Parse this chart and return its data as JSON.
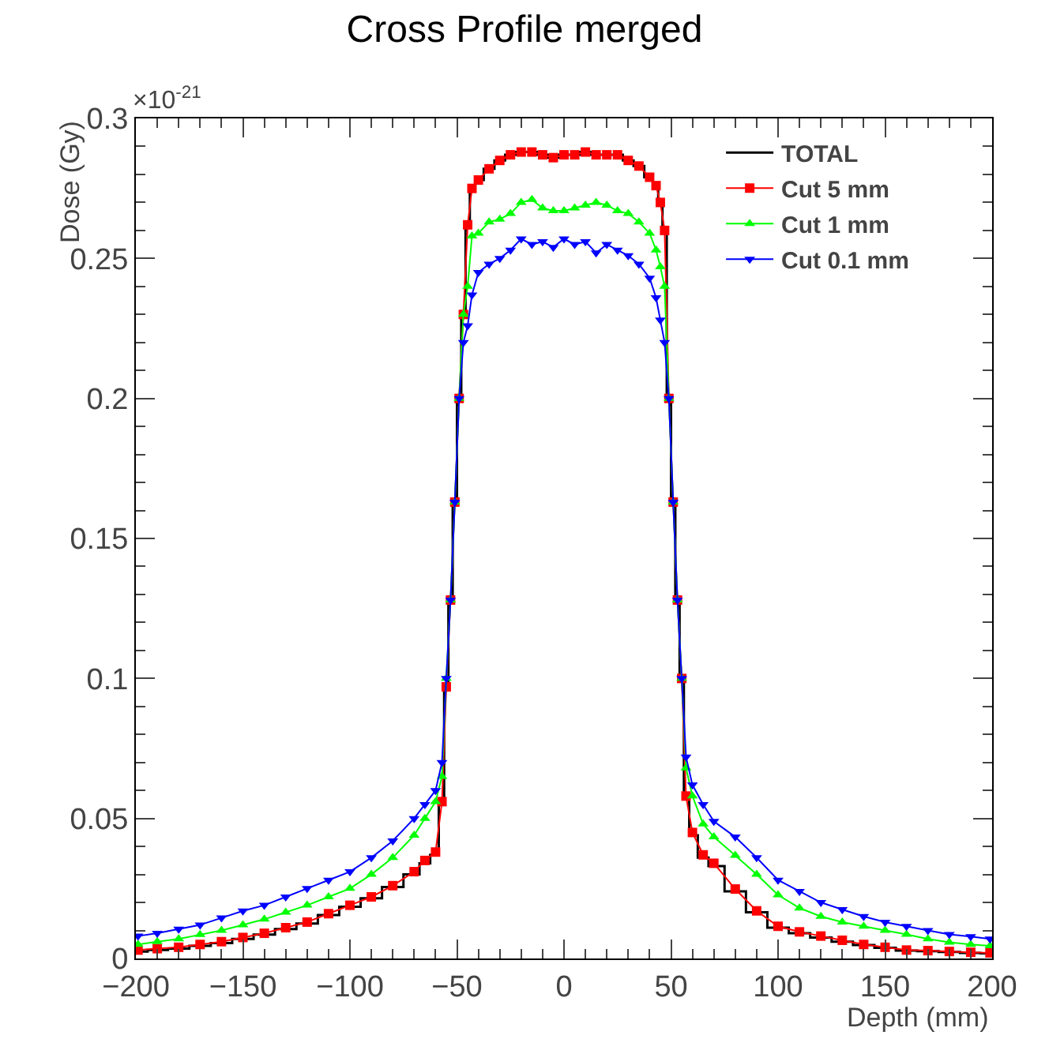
{
  "chart_data": {
    "type": "line",
    "title": "Cross Profile merged",
    "xlabel": "Depth (mm)",
    "ylabel": "Dose (Gy)",
    "annotations": [
      "×10$^{-21}$"
    ],
    "x": [
      -199,
      -190,
      -180,
      -170,
      -160,
      -150,
      -140,
      -130,
      -120,
      -110,
      -100,
      -90,
      -80,
      -70,
      -65,
      -60,
      -57,
      -55,
      -53,
      -51,
      -49,
      -47,
      -45,
      -43,
      -40,
      -35,
      -30,
      -25,
      -20,
      -15,
      -10,
      -5,
      0,
      5,
      10,
      15,
      20,
      25,
      30,
      35,
      40,
      43,
      45,
      47,
      49,
      51,
      53,
      55,
      57,
      60,
      65,
      70,
      80,
      90,
      100,
      110,
      120,
      130,
      140,
      150,
      160,
      170,
      180,
      190,
      199
    ],
    "series": [
      {
        "name": "TOTAL",
        "type": "step",
        "color": "#000000",
        "marker": "none",
        "values": [
          0.0025,
          0.003,
          0.0035,
          0.0045,
          0.0055,
          0.007,
          0.0085,
          0.0105,
          0.0125,
          0.0155,
          0.0185,
          0.0215,
          0.0255,
          0.03,
          0.034,
          0.037,
          0.056,
          0.097,
          0.128,
          0.163,
          0.2,
          0.23,
          0.262,
          0.275,
          0.278,
          0.282,
          0.285,
          0.287,
          0.288,
          0.288,
          0.287,
          0.286,
          0.287,
          0.287,
          0.288,
          0.287,
          0.287,
          0.287,
          0.285,
          0.283,
          0.279,
          0.276,
          0.27,
          0.26,
          0.2,
          0.163,
          0.128,
          0.1,
          0.058,
          0.044,
          0.036,
          0.033,
          0.024,
          0.0165,
          0.011,
          0.009,
          0.0075,
          0.006,
          0.0048,
          0.0038,
          0.0028,
          0.0026,
          0.0023,
          0.002,
          0.0018
        ]
      },
      {
        "name": "Cut 5 mm",
        "color": "#ff0000",
        "marker": "square",
        "values": [
          0.003,
          0.0035,
          0.004,
          0.005,
          0.006,
          0.0075,
          0.009,
          0.011,
          0.013,
          0.016,
          0.019,
          0.022,
          0.026,
          0.031,
          0.035,
          0.038,
          0.056,
          0.097,
          0.128,
          0.163,
          0.2,
          0.23,
          0.262,
          0.275,
          0.278,
          0.282,
          0.285,
          0.287,
          0.288,
          0.288,
          0.287,
          0.286,
          0.287,
          0.287,
          0.288,
          0.287,
          0.287,
          0.287,
          0.285,
          0.283,
          0.279,
          0.276,
          0.27,
          0.26,
          0.2,
          0.163,
          0.128,
          0.1,
          0.058,
          0.045,
          0.037,
          0.034,
          0.0248,
          0.017,
          0.0115,
          0.0095,
          0.008,
          0.0065,
          0.005,
          0.004,
          0.003,
          0.0028,
          0.0025,
          0.0022,
          0.002
        ]
      },
      {
        "name": "Cut 1 mm",
        "color": "#00ff00",
        "marker": "triangle",
        "values": [
          0.005,
          0.006,
          0.007,
          0.0085,
          0.01,
          0.012,
          0.014,
          0.0165,
          0.019,
          0.022,
          0.025,
          0.03,
          0.036,
          0.044,
          0.05,
          0.056,
          0.065,
          0.1,
          0.128,
          0.163,
          0.2,
          0.23,
          0.24,
          0.258,
          0.259,
          0.263,
          0.264,
          0.266,
          0.27,
          0.271,
          0.268,
          0.267,
          0.267,
          0.268,
          0.269,
          0.27,
          0.269,
          0.267,
          0.266,
          0.263,
          0.259,
          0.253,
          0.247,
          0.24,
          0.2,
          0.163,
          0.128,
          0.1,
          0.068,
          0.058,
          0.048,
          0.0434,
          0.0368,
          0.03,
          0.0227,
          0.018,
          0.015,
          0.013,
          0.0115,
          0.01,
          0.0086,
          0.007,
          0.0058,
          0.005,
          0.0045
        ]
      },
      {
        "name": "Cut 0.1 mm",
        "color": "#0000ff",
        "marker": "triangle-down",
        "values": [
          0.008,
          0.009,
          0.0105,
          0.012,
          0.0145,
          0.017,
          0.019,
          0.022,
          0.025,
          0.028,
          0.031,
          0.036,
          0.042,
          0.05,
          0.055,
          0.06,
          0.07,
          0.1,
          0.128,
          0.163,
          0.2,
          0.22,
          0.226,
          0.237,
          0.245,
          0.248,
          0.25,
          0.253,
          0.257,
          0.255,
          0.256,
          0.254,
          0.257,
          0.255,
          0.256,
          0.252,
          0.255,
          0.253,
          0.251,
          0.248,
          0.243,
          0.236,
          0.228,
          0.22,
          0.2,
          0.163,
          0.128,
          0.1,
          0.072,
          0.062,
          0.055,
          0.049,
          0.0434,
          0.036,
          0.028,
          0.024,
          0.02,
          0.0175,
          0.015,
          0.013,
          0.0115,
          0.01,
          0.0086,
          0.0078,
          0.007
        ]
      }
    ],
    "xlim": [
      -200,
      200
    ],
    "xticks": [
      -200,
      -150,
      -100,
      -50,
      0,
      50,
      100,
      150,
      200
    ],
    "ylim": [
      0,
      0.3
    ],
    "yticks": [
      0,
      0.05,
      0.1,
      0.15,
      0.2,
      0.25,
      0.3
    ],
    "grid": false,
    "legend": "top right"
  }
}
